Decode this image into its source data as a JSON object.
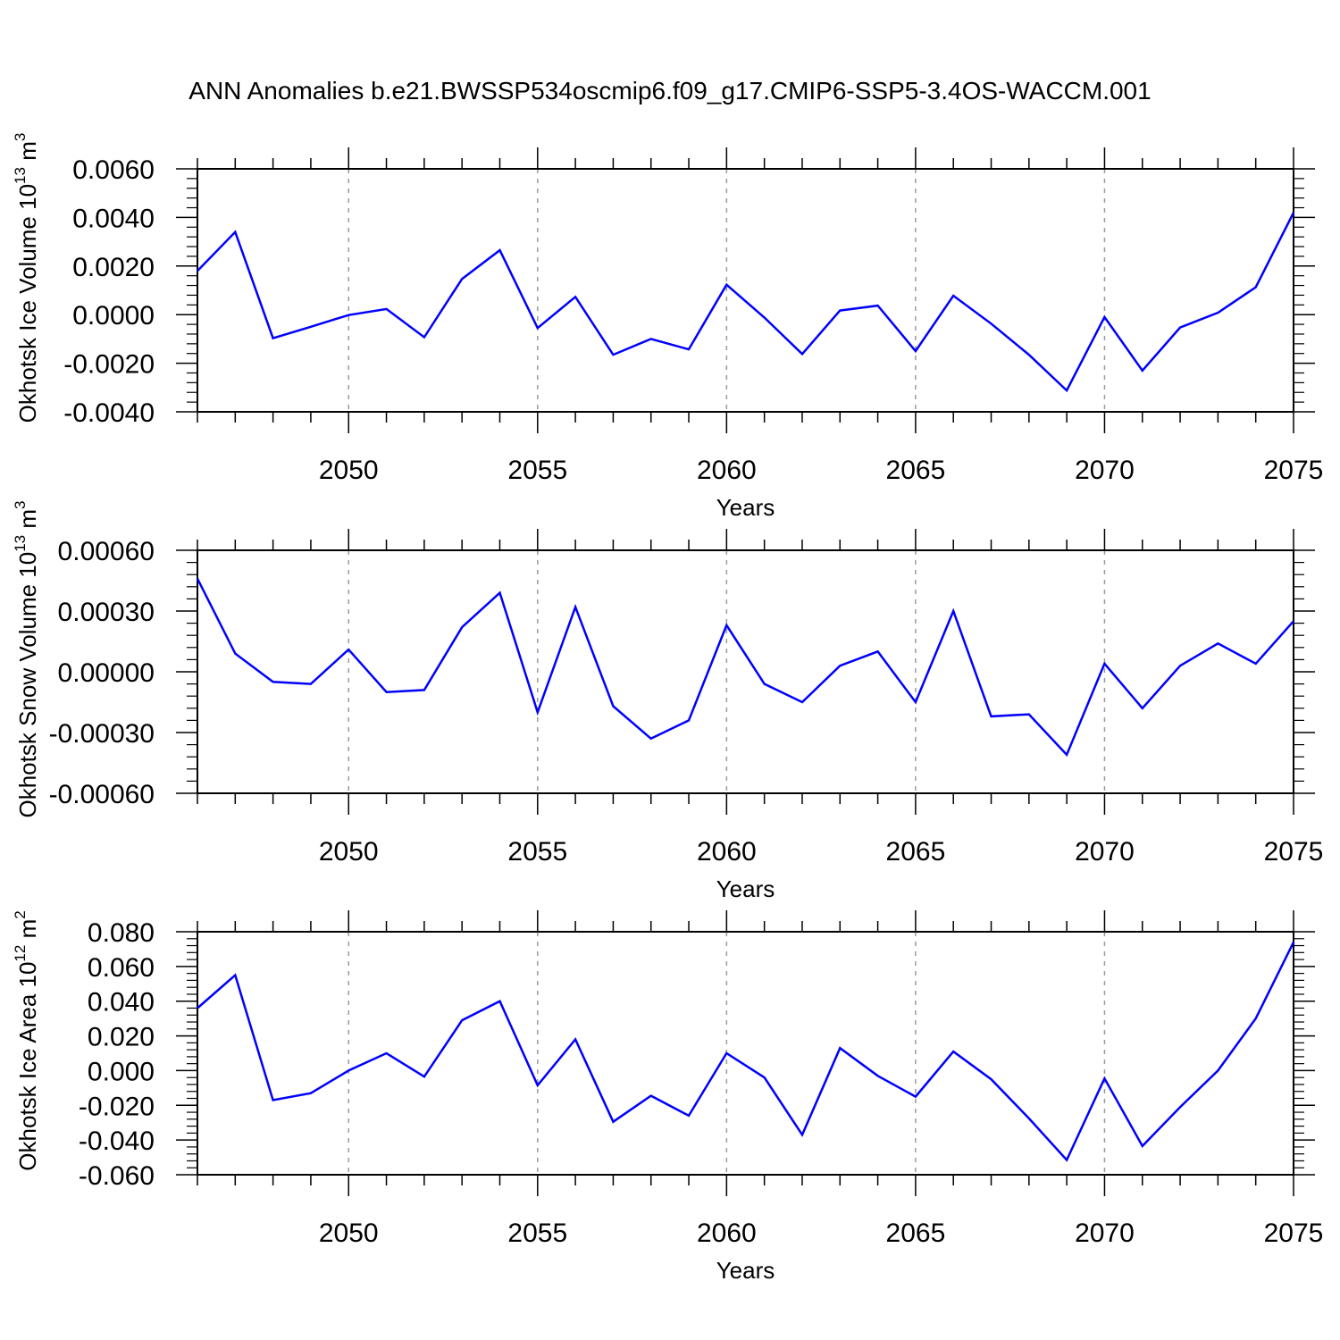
{
  "title": "ANN Anomalies b.e21.BWSSP534oscmip6.f09_g17.CMIP6-SSP5-3.4OS-WACCM.001",
  "chart_data": [
    {
      "type": "line",
      "ylabel": "Okhotsk Ice Volume 10",
      "ylabel_exp": "13",
      "ylabel_unit": " m",
      "ylabel_unit_exp": "3",
      "xlabel": "Years",
      "xlim": [
        2046,
        2075
      ],
      "ylim": [
        -0.004,
        0.006
      ],
      "xticks": [
        2050,
        2055,
        2060,
        2065,
        2070,
        2075
      ],
      "xtick_labels": [
        "2050",
        "2055",
        "2060",
        "2065",
        "2070",
        "2075"
      ],
      "yticks": [
        -0.004,
        -0.002,
        0.0,
        0.002,
        0.004,
        0.006
      ],
      "ytick_labels": [
        "-0.0040",
        "-0.0020",
        "0.0000",
        "0.0020",
        "0.0040",
        "0.0060"
      ],
      "series": [
        {
          "color": "#0000ff",
          "x": [
            2046,
            2047,
            2048,
            2049,
            2050,
            2051,
            2052,
            2053,
            2054,
            2055,
            2056,
            2057,
            2058,
            2059,
            2060,
            2061,
            2062,
            2063,
            2064,
            2065,
            2066,
            2067,
            2068,
            2069,
            2070,
            2071,
            2072,
            2073,
            2074,
            2075
          ],
          "y": [
            0.0018,
            0.0034,
            -0.00097,
            -0.0005,
            -2e-05,
            0.00023,
            -0.00093,
            0.00147,
            0.00265,
            -0.00055,
            0.00073,
            -0.00165,
            -0.001,
            -0.00143,
            0.00123,
            -0.00012,
            -0.00162,
            0.00017,
            0.00037,
            -0.0015,
            0.00078,
            -0.00037,
            -0.00165,
            -0.00312,
            -0.0001,
            -0.0023,
            -0.00053,
            8e-05,
            0.00113,
            0.0042
          ]
        }
      ]
    },
    {
      "type": "line",
      "ylabel": "Okhotsk Snow Volume 10",
      "ylabel_exp": "13",
      "ylabel_unit": " m",
      "ylabel_unit_exp": "3",
      "xlabel": "Years",
      "xlim": [
        2046,
        2075
      ],
      "ylim": [
        -0.0006,
        0.0006
      ],
      "xticks": [
        2050,
        2055,
        2060,
        2065,
        2070,
        2075
      ],
      "xtick_labels": [
        "2050",
        "2055",
        "2060",
        "2065",
        "2070",
        "2075"
      ],
      "yticks": [
        -0.0006,
        -0.0003,
        0.0,
        0.0003,
        0.0006
      ],
      "ytick_labels": [
        "-0.00060",
        "-0.00030",
        "0.00000",
        "0.00030",
        "0.00060"
      ],
      "series": [
        {
          "color": "#0000ff",
          "x": [
            2046,
            2047,
            2048,
            2049,
            2050,
            2051,
            2052,
            2053,
            2054,
            2055,
            2056,
            2057,
            2058,
            2059,
            2060,
            2061,
            2062,
            2063,
            2064,
            2065,
            2066,
            2067,
            2068,
            2069,
            2070,
            2071,
            2072,
            2073,
            2074,
            2075
          ],
          "y": [
            0.00046,
            9e-05,
            -5e-05,
            -6e-05,
            0.00011,
            -0.0001,
            -9e-05,
            0.00022,
            0.00039,
            -0.0002,
            0.00032,
            -0.00017,
            -0.00033,
            -0.00024,
            0.00023,
            -6e-05,
            -0.00015,
            3e-05,
            0.0001,
            -0.00015,
            0.0003,
            -0.00022,
            -0.00021,
            -0.00041,
            4e-05,
            -0.00018,
            3e-05,
            0.00014,
            4e-05,
            0.00025
          ]
        }
      ]
    },
    {
      "type": "line",
      "ylabel": "Okhotsk Ice Area 10",
      "ylabel_exp": "12",
      "ylabel_unit": " m",
      "ylabel_unit_exp": "2",
      "xlabel": "Years",
      "xlim": [
        2046,
        2075
      ],
      "ylim": [
        -0.06,
        0.08
      ],
      "xticks": [
        2050,
        2055,
        2060,
        2065,
        2070,
        2075
      ],
      "xtick_labels": [
        "2050",
        "2055",
        "2060",
        "2065",
        "2070",
        "2075"
      ],
      "yticks": [
        -0.06,
        -0.04,
        -0.02,
        0.0,
        0.02,
        0.04,
        0.06,
        0.08
      ],
      "ytick_labels": [
        "-0.060",
        "-0.040",
        "-0.020",
        "0.000",
        "0.020",
        "0.040",
        "0.060",
        "0.080"
      ],
      "series": [
        {
          "color": "#0000ff",
          "x": [
            2046,
            2047,
            2048,
            2049,
            2050,
            2051,
            2052,
            2053,
            2054,
            2055,
            2056,
            2057,
            2058,
            2059,
            2060,
            2061,
            2062,
            2063,
            2064,
            2065,
            2066,
            2067,
            2068,
            2069,
            2070,
            2071,
            2072,
            2073,
            2074,
            2075
          ],
          "y": [
            0.036,
            0.055,
            -0.017,
            -0.013,
            0.0,
            0.01,
            -0.0035,
            0.029,
            0.04,
            -0.0085,
            0.018,
            -0.0295,
            -0.0145,
            -0.026,
            0.01,
            -0.004,
            -0.037,
            0.013,
            -0.003,
            -0.015,
            0.011,
            -0.005,
            -0.0275,
            -0.0515,
            -0.0045,
            -0.0435,
            -0.021,
            0.0,
            0.03,
            0.074
          ]
        }
      ]
    }
  ]
}
